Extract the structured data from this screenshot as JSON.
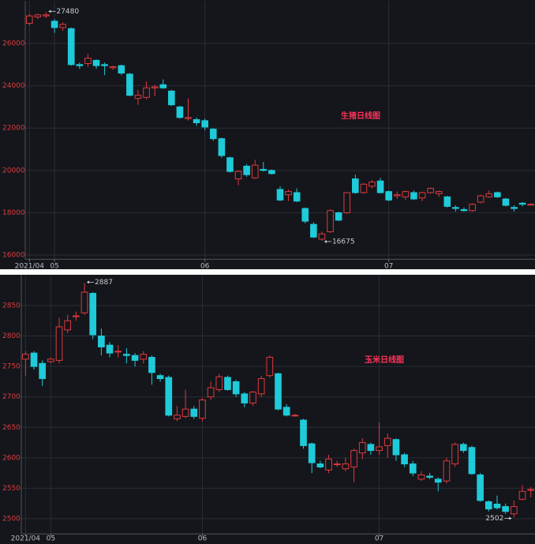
{
  "chart_data": [
    {
      "type": "candlestick",
      "title": "生猪日线图",
      "categories": [
        "2021/04",
        null,
        null,
        "05",
        null,
        null,
        null,
        null,
        null,
        null,
        null,
        null,
        null,
        null,
        null,
        null,
        null,
        null,
        null,
        null,
        null,
        "06",
        null,
        null,
        null,
        null,
        null,
        null,
        null,
        null,
        null,
        null,
        null,
        null,
        null,
        null,
        null,
        null,
        null,
        null,
        null,
        null,
        null,
        "07",
        null,
        null,
        null,
        null,
        null,
        null,
        null,
        null,
        null,
        null,
        null,
        null,
        null,
        null,
        null,
        null,
        null
      ],
      "open": [
        26950,
        27250,
        27300,
        27050,
        26750,
        26700,
        25000,
        25050,
        25200,
        25000,
        24850,
        24950,
        24550,
        23400,
        23450,
        23900,
        24050,
        23750,
        23000,
        22450,
        22400,
        22350,
        21950,
        21500,
        20600,
        19600,
        20200,
        19650,
        20050,
        20000,
        19100,
        18850,
        18950,
        18200,
        17450,
        16750,
        17100,
        18000,
        18000,
        19600,
        18950,
        19250,
        19500,
        19000,
        18800,
        18750,
        18950,
        18700,
        18950,
        18900,
        18750,
        18250,
        18150,
        18100,
        18500,
        18750,
        18950,
        18650,
        18250,
        18450,
        18400
      ],
      "high": [
        27400,
        27400,
        27480,
        27150,
        27000,
        26750,
        25100,
        25500,
        25250,
        25100,
        24950,
        25000,
        24600,
        23800,
        24200,
        24050,
        24300,
        23800,
        23050,
        23400,
        22500,
        22450,
        22000,
        21550,
        20650,
        20000,
        20300,
        20500,
        20400,
        20050,
        19250,
        19100,
        19150,
        18250,
        17550,
        17100,
        18150,
        18050,
        18950,
        19800,
        19400,
        19550,
        19650,
        19050,
        19000,
        19050,
        19050,
        19000,
        19200,
        19050,
        18800,
        18350,
        18250,
        18450,
        18850,
        19050,
        19000,
        18700,
        18350,
        18500,
        18450
      ],
      "low": [
        26850,
        27150,
        27200,
        26500,
        26600,
        24950,
        24800,
        24900,
        24800,
        24500,
        24750,
        24500,
        23500,
        23100,
        23350,
        23500,
        23850,
        23050,
        22450,
        22350,
        22100,
        21900,
        21400,
        20600,
        19900,
        19300,
        19700,
        19600,
        19950,
        19800,
        18550,
        18550,
        18500,
        17500,
        16800,
        16675,
        17050,
        17600,
        17950,
        18900,
        18900,
        19150,
        18900,
        18550,
        18650,
        18600,
        18600,
        18550,
        18900,
        18750,
        18250,
        18050,
        18050,
        18050,
        18450,
        18700,
        18700,
        18300,
        18050,
        18300,
        18350
      ],
      "close": [
        27300,
        27350,
        27350,
        26750,
        26900,
        25000,
        24950,
        25300,
        24950,
        24950,
        24900,
        24600,
        23550,
        23550,
        23900,
        23950,
        23900,
        23100,
        22500,
        22500,
        22250,
        22050,
        21500,
        20700,
        19950,
        19950,
        19800,
        20250,
        20000,
        19850,
        18600,
        19000,
        18550,
        17600,
        16850,
        17000,
        18100,
        17650,
        18950,
        18950,
        19350,
        19450,
        18950,
        18600,
        18850,
        19000,
        18650,
        18950,
        19150,
        19000,
        18300,
        18200,
        18100,
        18400,
        18800,
        18900,
        18750,
        18350,
        18200,
        18400,
        18400
      ],
      "up_color": "#e0393e",
      "down_color": "#1fcad9",
      "ylim": [
        15800,
        28000
      ],
      "yticks": [
        16000,
        18000,
        20000,
        22000,
        24000,
        26000
      ],
      "grid": true,
      "max_label": 27480,
      "min_label": 16675
    },
    {
      "type": "candlestick",
      "title": "玉米日线图",
      "categories": [
        "2021/04",
        null,
        null,
        "05",
        null,
        null,
        null,
        null,
        null,
        null,
        null,
        null,
        null,
        null,
        null,
        null,
        null,
        null,
        null,
        null,
        null,
        "06",
        null,
        null,
        null,
        null,
        null,
        null,
        null,
        null,
        null,
        null,
        null,
        null,
        null,
        null,
        null,
        null,
        null,
        null,
        null,
        null,
        "07",
        null,
        null,
        null,
        null,
        null,
        null,
        null,
        null,
        null,
        null,
        null,
        null,
        null,
        null,
        null,
        null,
        null,
        null
      ],
      "open": [
        2762,
        2772,
        2755,
        2758,
        2760,
        2810,
        2832,
        2838,
        2870,
        2800,
        2785,
        2775,
        2770,
        2768,
        2762,
        2765,
        2735,
        2732,
        2664,
        2668,
        2680,
        2665,
        2700,
        2712,
        2732,
        2725,
        2705,
        2690,
        2705,
        2735,
        2738,
        2683,
        2670,
        2662,
        2623,
        2590,
        2580,
        2590,
        2582,
        2585,
        2608,
        2622,
        2612,
        2620,
        2630,
        2605,
        2590,
        2565,
        2570,
        2565,
        2562,
        2590,
        2622,
        2617,
        2572,
        2528,
        2524,
        2520,
        2508,
        2532,
        2548
      ],
      "high": [
        2775,
        2775,
        2760,
        2765,
        2830,
        2835,
        2840,
        2887,
        2872,
        2812,
        2790,
        2785,
        2780,
        2772,
        2775,
        2768,
        2738,
        2735,
        2685,
        2712,
        2685,
        2698,
        2725,
        2738,
        2735,
        2728,
        2708,
        2710,
        2735,
        2768,
        2740,
        2688,
        2672,
        2664,
        2625,
        2595,
        2605,
        2595,
        2600,
        2615,
        2632,
        2625,
        2658,
        2640,
        2632,
        2608,
        2595,
        2578,
        2575,
        2568,
        2600,
        2625,
        2625,
        2620,
        2575,
        2530,
        2538,
        2525,
        2530,
        2555,
        2552
      ],
      "low": [
        2735,
        2745,
        2718,
        2755,
        2755,
        2805,
        2825,
        2835,
        2795,
        2768,
        2765,
        2765,
        2755,
        2750,
        2755,
        2720,
        2725,
        2668,
        2660,
        2665,
        2664,
        2660,
        2695,
        2708,
        2710,
        2700,
        2683,
        2685,
        2700,
        2732,
        2678,
        2668,
        2668,
        2615,
        2575,
        2583,
        2575,
        2585,
        2578,
        2560,
        2598,
        2605,
        2605,
        2600,
        2595,
        2585,
        2570,
        2562,
        2565,
        2545,
        2558,
        2585,
        2608,
        2572,
        2528,
        2512,
        2515,
        2508,
        2502,
        2530,
        2535
      ],
      "close": [
        2770,
        2750,
        2730,
        2762,
        2815,
        2825,
        2833,
        2872,
        2802,
        2782,
        2772,
        2775,
        2768,
        2760,
        2770,
        2740,
        2730,
        2670,
        2670,
        2680,
        2668,
        2695,
        2715,
        2733,
        2712,
        2705,
        2690,
        2708,
        2730,
        2765,
        2680,
        2670,
        2670,
        2620,
        2592,
        2585,
        2598,
        2590,
        2590,
        2612,
        2625,
        2612,
        2618,
        2632,
        2605,
        2590,
        2575,
        2572,
        2568,
        2560,
        2595,
        2622,
        2612,
        2574,
        2530,
        2516,
        2518,
        2512,
        2520,
        2545,
        2548
      ],
      "up_color": "#e0393e",
      "down_color": "#1fcad9",
      "ylim": [
        2475,
        2900
      ],
      "yticks": [
        2500,
        2550,
        2600,
        2650,
        2700,
        2750,
        2800,
        2850
      ],
      "grid": true,
      "max_label": 2887,
      "min_label": 2502
    }
  ]
}
